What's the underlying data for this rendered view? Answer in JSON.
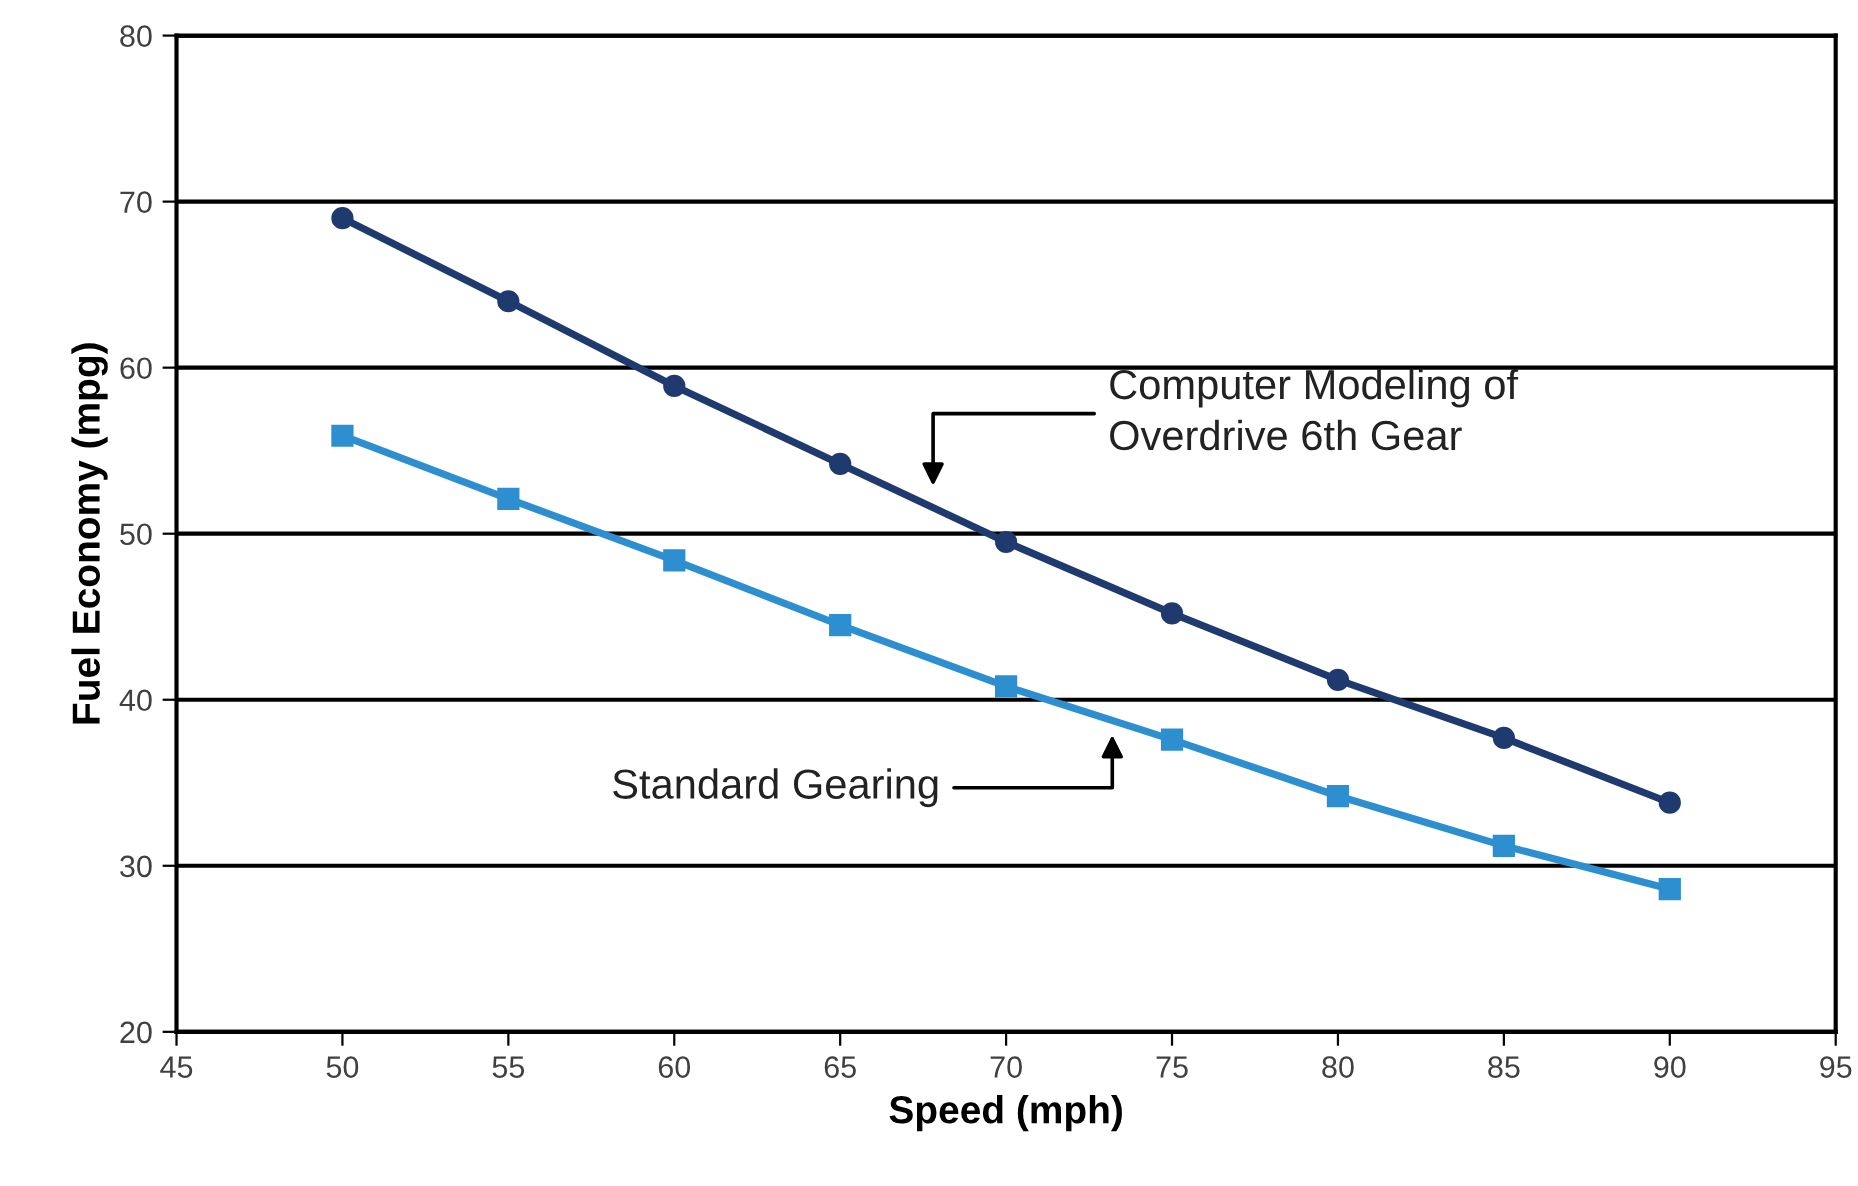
{
  "chart_data": {
    "type": "line",
    "xlabel": "Speed (mph)",
    "ylabel": "Fuel Economy (mpg)",
    "x": [
      50,
      55,
      60,
      65,
      70,
      75,
      80,
      85,
      90
    ],
    "series": [
      {
        "color": "#1f3a6e",
        "marker": "circle",
        "values": [
          69.0,
          64.0,
          58.9,
          54.2,
          49.5,
          45.2,
          41.2,
          37.7,
          33.8
        ]
      },
      {
        "color": "#2e8fd0",
        "marker": "square",
        "values": [
          55.9,
          52.1,
          48.4,
          44.5,
          40.8,
          37.6,
          34.2,
          31.2,
          28.6
        ]
      }
    ],
    "annotations": [
      "Computer Modeling of\nOverdrive 6th Gear",
      "Standard Gearing"
    ],
    "xlim": [
      45,
      95
    ],
    "xticks": [
      45,
      50,
      55,
      60,
      65,
      70,
      75,
      80,
      85,
      90,
      95
    ],
    "ylim": [
      20,
      80
    ],
    "yticks": [
      20,
      30,
      40,
      50,
      60,
      70,
      80
    ],
    "grid": "y",
    "line_style": "solid",
    "legend": false
  }
}
